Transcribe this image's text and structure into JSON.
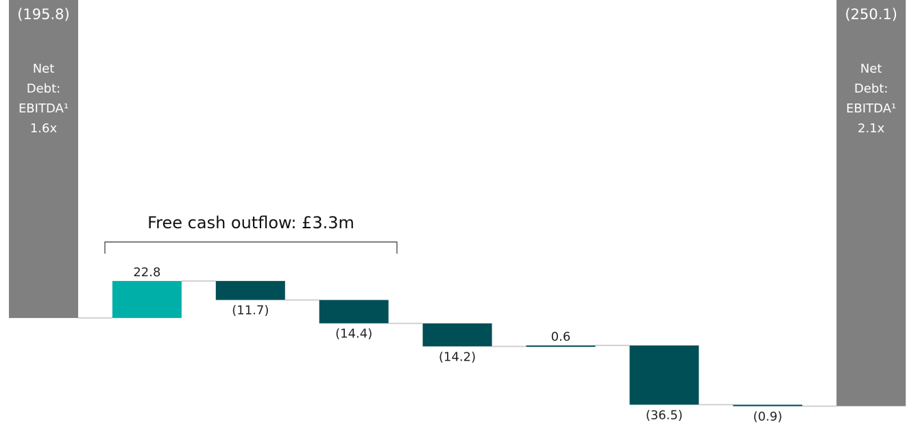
{
  "chart_data": {
    "type": "waterfall",
    "categories": [
      null,
      null,
      null,
      null,
      null,
      null,
      null,
      null,
      null
    ],
    "values": [
      -195.8,
      22.8,
      -11.7,
      -14.4,
      -14.2,
      0.6,
      -36.5,
      -0.9,
      -250.1
    ],
    "value_labels": [
      "(195.8)",
      "22.8",
      "(11.7)",
      "(14.4)",
      "(14.2)",
      "0.6",
      "(36.5)",
      "(0.9)",
      "(250.1)"
    ],
    "measures": [
      "total",
      "relative",
      "relative",
      "relative",
      "relative",
      "relative",
      "relative",
      "relative",
      "total"
    ],
    "colors": [
      "#808080",
      "#00b0a8",
      "#004f56",
      "#004f56",
      "#004f56",
      "#004f56",
      "#004f56",
      "#004f56",
      "#808080"
    ],
    "ylim": [
      -260,
      0
    ],
    "annotations": {
      "start_note": [
        "Net",
        "Debt:",
        "EBITDA¹",
        "1.6x"
      ],
      "end_note": [
        "Net",
        "Debt:",
        "EBITDA¹",
        "2.1x"
      ],
      "bracket_label": "Free cash outflow: £3.3m"
    }
  }
}
